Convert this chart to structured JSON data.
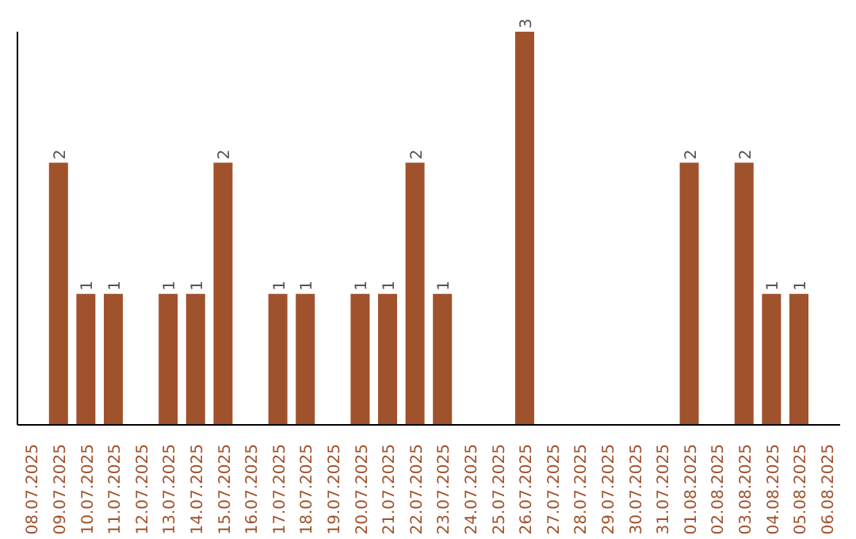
{
  "chart_data": {
    "type": "bar",
    "categories": [
      "08.07.2025",
      "09.07.2025",
      "10.07.2025",
      "11.07.2025",
      "12.07.2025",
      "13.07.2025",
      "14.07.2025",
      "15.07.2025",
      "16.07.2025",
      "17.07.2025",
      "18.07.2025",
      "19.07.2025",
      "20.07.2025",
      "21.07.2025",
      "22.07.2025",
      "23.07.2025",
      "24.07.2025",
      "25.07.2025",
      "26.07.2025",
      "27.07.2025",
      "28.07.2025",
      "29.07.2025",
      "30.07.2025",
      "31.07.2025",
      "01.08.2025",
      "02.08.2025",
      "03.08.2025",
      "04.08.2025",
      "05.08.2025",
      "06.08.2025"
    ],
    "values": [
      0,
      2,
      1,
      1,
      0,
      1,
      1,
      2,
      0,
      1,
      1,
      0,
      1,
      1,
      2,
      1,
      0,
      0,
      3,
      0,
      0,
      0,
      0,
      0,
      2,
      0,
      2,
      1,
      1,
      0
    ],
    "value_labels": [
      null,
      "2",
      "1",
      "1",
      null,
      "1",
      "1",
      "2",
      null,
      "1",
      "1",
      null,
      "1",
      "1",
      "2",
      "1",
      null,
      null,
      "3",
      null,
      null,
      null,
      null,
      null,
      "2",
      null,
      "2",
      "1",
      "1",
      null
    ],
    "color": "#a0522d",
    "ylim": [
      0,
      3
    ],
    "tick_labels": "x"
  }
}
